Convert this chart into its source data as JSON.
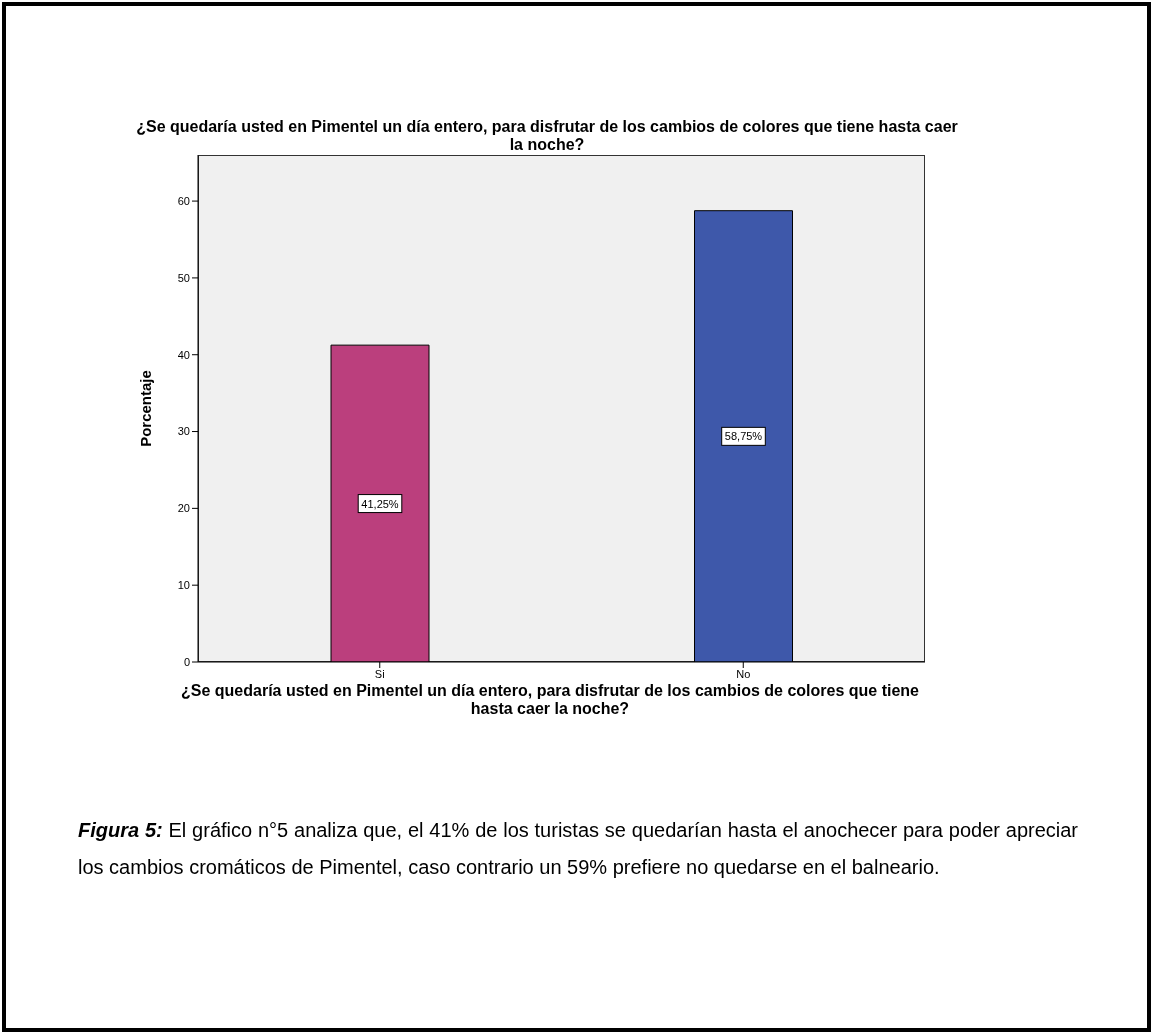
{
  "chart_data": {
    "type": "bar",
    "title": "¿Se quedaría usted en Pimentel un día entero, para disfrutar de los cambios de colores que tiene hasta caer la noche?",
    "xlabel": "¿Se quedaría usted en Pimentel un día entero, para disfrutar de los cambios de colores que tiene hasta caer la noche?",
    "ylabel": "Porcentaje",
    "categories": [
      "Si",
      "No"
    ],
    "values": [
      41.25,
      58.75
    ],
    "colors": [
      "#bb3f7d",
      "#3e58aa"
    ],
    "value_labels": [
      "41,25%",
      "58,75%"
    ],
    "ylim": [
      0,
      66
    ],
    "yticks": [
      0,
      10,
      20,
      30,
      40,
      50,
      60
    ],
    "annotations": [
      "Figura 5:",
      "El gráfico n°5 analiza que, el 41% de los turistas se quedarían hasta el anochecer para poder apreciar los cambios cromáticos de Pimentel, caso contrario un 59% prefiere no quedarse en el balneario."
    ]
  }
}
